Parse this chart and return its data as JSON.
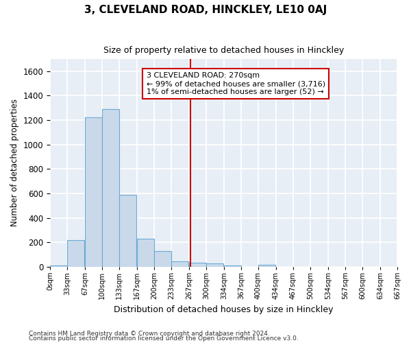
{
  "title": "3, CLEVELAND ROAD, HINCKLEY, LE10 0AJ",
  "subtitle": "Size of property relative to detached houses in Hinckley",
  "xlabel": "Distribution of detached houses by size in Hinckley",
  "ylabel": "Number of detached properties",
  "bar_color": "#c9d9ea",
  "bar_edge_color": "#6aaad4",
  "background_color": "#e8eef5",
  "grid_color": "#ffffff",
  "fig_background": "#ffffff",
  "bin_edges": [
    0,
    33,
    67,
    100,
    133,
    167,
    200,
    233,
    267,
    300,
    334,
    367,
    400,
    434,
    467,
    500,
    534,
    567,
    600,
    634,
    667
  ],
  "bin_labels": [
    "0sqm",
    "33sqm",
    "67sqm",
    "100sqm",
    "133sqm",
    "167sqm",
    "200sqm",
    "233sqm",
    "267sqm",
    "300sqm",
    "334sqm",
    "367sqm",
    "400sqm",
    "434sqm",
    "467sqm",
    "500sqm",
    "534sqm",
    "567sqm",
    "600sqm",
    "634sqm",
    "667sqm"
  ],
  "bar_heights": [
    10,
    220,
    1220,
    1290,
    590,
    230,
    130,
    45,
    30,
    25,
    10,
    0,
    15,
    0,
    0,
    0,
    0,
    0,
    0,
    0
  ],
  "ylim": [
    0,
    1700
  ],
  "yticks": [
    0,
    200,
    400,
    600,
    800,
    1000,
    1200,
    1400,
    1600
  ],
  "vline_x": 270,
  "vline_color": "#cc0000",
  "annotation_line1": "3 CLEVELAND ROAD: 270sqm",
  "annotation_line2": "← 99% of detached houses are smaller (3,716)",
  "annotation_line3": "1% of semi-detached houses are larger (52) →",
  "annotation_box_color": "#ffffff",
  "annotation_edge_color": "#cc0000",
  "footnote1": "Contains HM Land Registry data © Crown copyright and database right 2024.",
  "footnote2": "Contains public sector information licensed under the Open Government Licence v3.0."
}
